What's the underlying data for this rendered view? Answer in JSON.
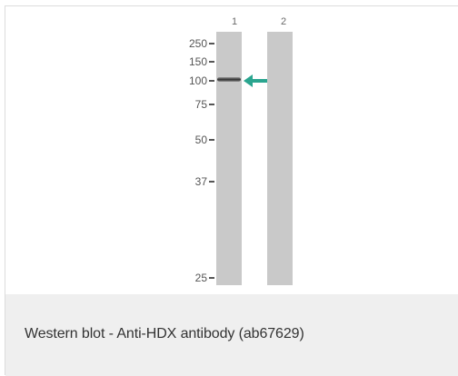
{
  "figure": {
    "lane_labels": [
      "1",
      "2"
    ],
    "mw_markers": [
      "250",
      "150",
      "100",
      "75",
      "50",
      "37",
      "25"
    ],
    "arrow_icon": "arrow-left-icon",
    "arrow_color": "#2aa58f",
    "lane_color": "#c9c9c9"
  },
  "caption": {
    "text": "Western blot - Anti-HDX antibody (ab67629)"
  }
}
